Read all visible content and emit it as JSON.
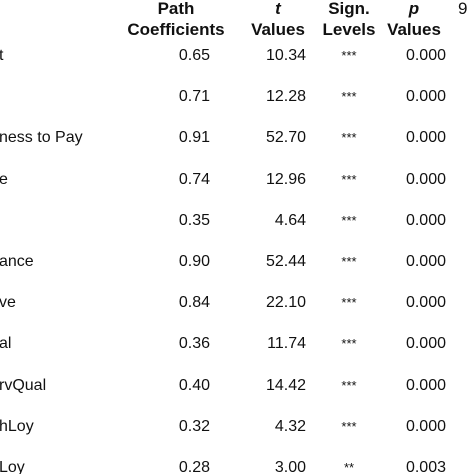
{
  "header": {
    "path_line1": "Path",
    "path_line2": "Coefficients",
    "t_line1": "t",
    "t_line2": "Values",
    "sign_line1": "Sign.",
    "sign_line2": "Levels",
    "p_line1": "p",
    "p_line2": "Values",
    "extra": "9"
  },
  "rows": [
    {
      "label": "t",
      "path": "0.65",
      "t": "10.34",
      "sign": "***",
      "p": "0.000"
    },
    {
      "label": "",
      "path": "0.71",
      "t": "12.28",
      "sign": "***",
      "p": "0.000"
    },
    {
      "label": "ness to Pay",
      "path": "0.91",
      "t": "52.70",
      "sign": "***",
      "p": "0.000"
    },
    {
      "label": "e",
      "path": "0.74",
      "t": "12.96",
      "sign": "***",
      "p": "0.000"
    },
    {
      "label": "",
      "path": "0.35",
      "t": "4.64",
      "sign": "***",
      "p": "0.000"
    },
    {
      "label": "ance",
      "path": "0.90",
      "t": "52.44",
      "sign": "***",
      "p": "0.000"
    },
    {
      "label": "ve",
      "path": "0.84",
      "t": "22.10",
      "sign": "***",
      "p": "0.000"
    },
    {
      "label": "al",
      "path": "0.36",
      "t": "11.74",
      "sign": "***",
      "p": "0.000"
    },
    {
      "label": "rvQual",
      "path": "0.40",
      "t": "14.42",
      "sign": "***",
      "p": "0.000"
    },
    {
      "label": "hLoy",
      "path": "0.32",
      "t": "4.32",
      "sign": "***",
      "p": "0.000"
    },
    {
      "label": "Loy",
      "path": "0.28",
      "t": "3.00",
      "sign": "**",
      "p": "0.003"
    }
  ]
}
